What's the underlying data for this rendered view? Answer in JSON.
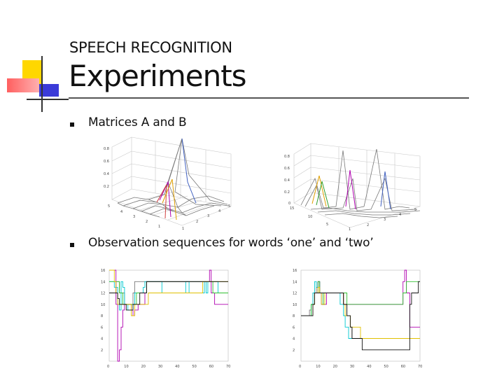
{
  "header": {
    "subtitle": "SPEECH RECOGNITION",
    "title": "Experiments"
  },
  "bullets": [
    {
      "text": "Matrices A and B"
    },
    {
      "text": "Observation sequences for words ‘one’ and ‘two’"
    }
  ],
  "colors": {
    "accent_yellow": "#ffd700",
    "accent_red": "#ff5f5f",
    "accent_blue": "#3b3bd8",
    "text": "#111111"
  },
  "chart_data": [
    {
      "type": "surface",
      "note": "3D mesh plot (matrix A)",
      "z_ticks": [
        "0.8",
        "0.6",
        "0.4",
        "0.2"
      ],
      "x_ticks": [
        "5",
        "4",
        "3",
        "2",
        "1"
      ],
      "y_ticks": [
        "1",
        "2",
        "3",
        "4",
        "5"
      ]
    },
    {
      "type": "surface",
      "note": "3D mesh plot (matrix B)",
      "z_ticks": [
        "0.8",
        "0.6",
        "0.4",
        "0.2",
        "0"
      ],
      "x_ticks": [
        "15",
        "10",
        "5"
      ],
      "y_ticks": [
        "1",
        "2",
        "3",
        "4",
        "5"
      ]
    },
    {
      "type": "line",
      "note": "observation sequences, word 'one'",
      "x_ticks": [
        "0",
        "10",
        "20",
        "30",
        "40",
        "50",
        "60",
        "70"
      ],
      "y_ticks": [
        "16",
        "14",
        "12",
        "10",
        "8",
        "6",
        "4",
        "2"
      ],
      "xlim": [
        0,
        70
      ],
      "ylim": [
        0,
        16
      ],
      "series": [
        {
          "color": "#7a7a7a",
          "values": [
            12,
            12,
            12,
            12,
            14,
            14,
            12,
            12,
            12,
            10,
            10,
            10,
            10,
            10,
            12,
            14,
            14,
            14,
            14,
            14,
            14,
            14,
            14,
            14,
            14,
            14,
            14,
            14,
            14,
            14,
            14,
            14,
            14,
            14,
            14,
            14,
            14,
            14,
            14,
            14,
            14,
            14,
            14,
            14,
            14,
            14,
            14,
            14,
            14,
            14,
            14,
            14,
            14,
            14,
            14,
            14,
            14,
            14,
            14,
            14,
            14,
            14,
            14,
            14,
            14,
            14,
            14,
            14,
            14,
            14,
            14
          ]
        },
        {
          "color": "#00c8d0",
          "values": [
            14,
            14,
            14,
            13,
            13,
            10,
            9,
            14,
            13,
            10,
            10,
            9,
            9,
            9,
            10,
            12,
            12,
            12,
            12,
            12,
            13,
            14,
            14,
            14,
            14,
            14,
            14,
            14,
            14,
            14,
            14,
            12,
            12,
            12,
            12,
            12,
            12,
            12,
            12,
            12,
            12,
            12,
            12,
            12,
            12,
            14,
            14,
            12,
            12,
            12,
            12,
            12,
            12,
            12,
            12,
            12,
            14,
            12,
            14,
            14,
            14,
            14,
            14,
            14,
            12,
            12,
            12,
            12,
            12,
            12,
            12
          ]
        },
        {
          "color": "#b000b0",
          "values": [
            16,
            16,
            16,
            16,
            10,
            0,
            2,
            6,
            9,
            10,
            10,
            10,
            10,
            9,
            8,
            9,
            9,
            10,
            10,
            10,
            10,
            12,
            14,
            14,
            14,
            14,
            14,
            14,
            14,
            14,
            14,
            14,
            14,
            14,
            14,
            14,
            14,
            14,
            14,
            14,
            14,
            14,
            14,
            14,
            14,
            14,
            14,
            14,
            14,
            14,
            14,
            14,
            14,
            14,
            14,
            14,
            14,
            14,
            14,
            16,
            12,
            12,
            10,
            10,
            10,
            10,
            10,
            10,
            10,
            10,
            10
          ]
        },
        {
          "color": "#30c030",
          "values": [
            14,
            14,
            14,
            14,
            14,
            14,
            12,
            12,
            10,
            10,
            10,
            10,
            10,
            10,
            10,
            10,
            12,
            12,
            12,
            12,
            12,
            12,
            14,
            14,
            14,
            14,
            14,
            14,
            14,
            14,
            14,
            14,
            14,
            14,
            14,
            14,
            14,
            14,
            14,
            14,
            14,
            14,
            14,
            14,
            14,
            14,
            14,
            14,
            14,
            14,
            14,
            14,
            14,
            14,
            14,
            14,
            14,
            14,
            14,
            14,
            14,
            12,
            12,
            12,
            12,
            12,
            12,
            12,
            12,
            12,
            12
          ]
        },
        {
          "color": "#e0c000",
          "values": [
            16,
            16,
            16,
            14,
            12,
            10,
            10,
            10,
            10,
            10,
            10,
            10,
            10,
            8,
            8,
            10,
            10,
            10,
            10,
            10,
            10,
            10,
            10,
            12,
            12,
            12,
            12,
            12,
            12,
            12,
            12,
            12,
            12,
            12,
            12,
            12,
            12,
            12,
            12,
            12,
            12,
            12,
            12,
            12,
            12,
            12,
            12,
            12,
            12,
            12,
            12,
            12,
            12,
            12,
            12,
            14,
            14,
            14,
            14,
            14,
            14,
            14,
            14,
            14,
            14,
            14,
            14,
            14,
            14,
            14,
            14
          ]
        },
        {
          "color": "#111111",
          "values": [
            12,
            12,
            12,
            12,
            12,
            11,
            10,
            10,
            10,
            10,
            9,
            9,
            9,
            9,
            10,
            10,
            10,
            10,
            12,
            12,
            12,
            12,
            14,
            14,
            14,
            14,
            14,
            14,
            14,
            14,
            14,
            14,
            14,
            14,
            14,
            14,
            14,
            14,
            14,
            14,
            14,
            14,
            14,
            14,
            14,
            14,
            14,
            14,
            14,
            14,
            14,
            14,
            14,
            14,
            14,
            14,
            14,
            14,
            14,
            14,
            14,
            14,
            14,
            14,
            14,
            14,
            14,
            14,
            14,
            14,
            14
          ]
        }
      ]
    },
    {
      "type": "line",
      "note": "observation sequences, word 'two'",
      "x_ticks": [
        "0",
        "10",
        "20",
        "30",
        "40",
        "50",
        "60",
        "70"
      ],
      "y_ticks": [
        "16",
        "14",
        "12",
        "10",
        "8",
        "6",
        "4",
        "2"
      ],
      "xlim": [
        0,
        70
      ],
      "ylim": [
        0,
        16
      ],
      "series": [
        {
          "color": "#7a7a7a",
          "values": [
            8,
            8,
            8,
            8,
            8,
            9,
            10,
            12,
            12,
            13,
            14,
            12,
            12,
            10,
            12,
            12,
            12,
            12,
            12,
            12,
            12,
            12,
            12,
            12,
            12,
            10,
            10,
            8,
            8,
            6,
            4,
            4,
            4,
            4,
            4,
            4,
            4,
            4,
            4,
            4,
            4,
            4,
            4,
            4,
            4,
            4,
            4,
            4,
            4,
            4,
            4,
            4,
            4,
            4,
            4,
            4,
            4,
            4,
            4,
            4,
            4,
            4,
            4,
            4,
            4,
            4,
            4,
            4,
            4,
            4,
            4
          ]
        },
        {
          "color": "#00c8d0",
          "values": [
            8,
            8,
            8,
            8,
            8,
            8,
            10,
            12,
            14,
            13,
            14,
            12,
            10,
            10,
            12,
            12,
            12,
            12,
            12,
            12,
            12,
            12,
            12,
            10,
            10,
            8,
            6,
            6,
            4,
            4,
            4,
            4,
            4,
            4,
            4,
            4,
            4,
            4,
            4,
            4,
            4,
            4,
            4,
            4,
            4,
            4,
            4,
            4,
            4,
            4,
            4,
            4,
            4,
            4,
            4,
            4,
            4,
            4,
            4,
            4,
            4,
            4,
            4,
            4,
            4,
            4,
            4,
            4,
            4,
            4,
            4
          ]
        },
        {
          "color": "#b000b0",
          "values": [
            8,
            8,
            8,
            8,
            8,
            8,
            8,
            10,
            12,
            12,
            14,
            12,
            10,
            10,
            10,
            12,
            12,
            12,
            12,
            12,
            12,
            12,
            12,
            12,
            12,
            10,
            10,
            10,
            10,
            10,
            10,
            10,
            10,
            10,
            10,
            10,
            10,
            10,
            10,
            10,
            10,
            10,
            10,
            10,
            10,
            10,
            10,
            10,
            10,
            10,
            10,
            10,
            10,
            10,
            10,
            10,
            10,
            10,
            10,
            10,
            14,
            16,
            12,
            12,
            6,
            6,
            6,
            6,
            6,
            6,
            6
          ]
        },
        {
          "color": "#30c030",
          "values": [
            8,
            8,
            8,
            8,
            8,
            8,
            10,
            10,
            12,
            12,
            14,
            12,
            12,
            10,
            12,
            12,
            12,
            12,
            12,
            12,
            12,
            12,
            12,
            12,
            12,
            12,
            12,
            10,
            10,
            10,
            10,
            10,
            10,
            10,
            10,
            10,
            10,
            10,
            10,
            10,
            10,
            10,
            10,
            10,
            10,
            10,
            10,
            10,
            10,
            10,
            10,
            10,
            10,
            10,
            10,
            10,
            10,
            10,
            10,
            10,
            12,
            12,
            14,
            14,
            14,
            14,
            14,
            14,
            14,
            14,
            14
          ]
        },
        {
          "color": "#e0c000",
          "values": [
            8,
            8,
            8,
            8,
            8,
            8,
            8,
            10,
            12,
            12,
            13,
            12,
            10,
            10,
            12,
            12,
            12,
            12,
            12,
            12,
            12,
            12,
            12,
            12,
            12,
            10,
            8,
            8,
            8,
            6,
            6,
            6,
            6,
            6,
            6,
            4,
            4,
            4,
            4,
            4,
            4,
            4,
            4,
            4,
            4,
            4,
            4,
            4,
            4,
            4,
            4,
            4,
            4,
            4,
            4,
            4,
            4,
            4,
            4,
            4,
            4,
            4,
            4,
            4,
            4,
            4,
            4,
            4,
            4,
            4,
            4
          ]
        },
        {
          "color": "#111111",
          "values": [
            8,
            8,
            8,
            8,
            8,
            8,
            8,
            10,
            12,
            12,
            12,
            12,
            12,
            12,
            12,
            12,
            12,
            12,
            12,
            12,
            12,
            12,
            12,
            12,
            12,
            10,
            10,
            8,
            8,
            6,
            4,
            4,
            4,
            4,
            4,
            4,
            2,
            2,
            2,
            2,
            2,
            2,
            2,
            2,
            2,
            2,
            2,
            2,
            2,
            2,
            2,
            2,
            2,
            2,
            2,
            2,
            2,
            2,
            2,
            2,
            2,
            2,
            2,
            2,
            10,
            12,
            12,
            12,
            12,
            14,
            14
          ]
        }
      ]
    }
  ]
}
